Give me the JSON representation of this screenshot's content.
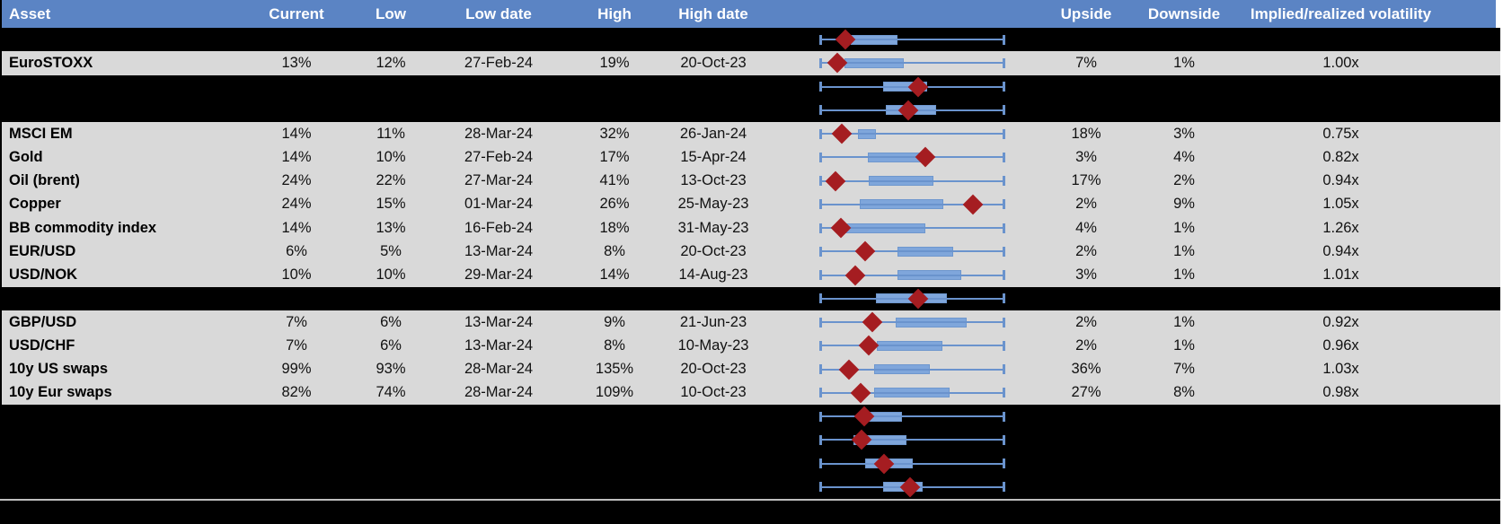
{
  "header": {
    "columns": [
      "Asset",
      "Current",
      "Low",
      "Low date",
      "High",
      "High date",
      "",
      "Upside",
      "Downside",
      "Implied/realized volatility"
    ]
  },
  "colors": {
    "header_blue": "#5B84C4",
    "row_gray": "#D9D9D9",
    "spacer_black": "#000000",
    "whisker_blue": "#6A93CD",
    "box_fill_blue": "#7FA6DB",
    "box_border_blue": "#6E97CE",
    "marker_red": "#A51D21",
    "divider_gray": "#BFBFBF"
  },
  "rows": [
    {
      "type": "spacer",
      "plot": {
        "box_start": 0.166,
        "box_end": 0.41,
        "marker": 0.137
      }
    },
    {
      "type": "data",
      "asset": "EuroSTOXX",
      "current": "13%",
      "low": "12%",
      "low_date": "27-Feb-24",
      "high": "19%",
      "high_date": "20-Oct-23",
      "upside": "7%",
      "downside": "1%",
      "implied_realized": "1.00x",
      "plot": {
        "box_start": 0.132,
        "box_end": 0.444,
        "marker": 0.093
      }
    },
    {
      "type": "spacer",
      "plot": {
        "box_start": 0.341,
        "box_end": 0.571,
        "marker": 0.532
      }
    },
    {
      "type": "spacer",
      "plot": {
        "box_start": 0.356,
        "box_end": 0.62,
        "marker": 0.478
      }
    },
    {
      "type": "data",
      "asset": "MSCI EM",
      "current": "14%",
      "low": "11%",
      "low_date": "28-Mar-24",
      "high": "32%",
      "high_date": "26-Jan-24",
      "upside": "18%",
      "downside": "3%",
      "implied_realized": "0.75x",
      "plot": {
        "box_start": 0.205,
        "box_end": 0.293,
        "marker": 0.117
      }
    },
    {
      "type": "data",
      "asset": "Gold",
      "current": "14%",
      "low": "10%",
      "low_date": "27-Feb-24",
      "high": "17%",
      "high_date": "15-Apr-24",
      "upside": "3%",
      "downside": "4%",
      "implied_realized": "0.82x",
      "plot": {
        "box_start": 0.259,
        "box_end": 0.537,
        "marker": 0.571
      }
    },
    {
      "type": "data",
      "asset": "Oil (brent)",
      "current": "24%",
      "low": "22%",
      "low_date": "27-Mar-24",
      "high": "41%",
      "high_date": "13-Oct-23",
      "upside": "17%",
      "downside": "2%",
      "implied_realized": "0.94x",
      "plot": {
        "box_start": 0.263,
        "box_end": 0.605,
        "marker": 0.083
      }
    },
    {
      "type": "data",
      "asset": "Copper",
      "current": "24%",
      "low": "15%",
      "low_date": "01-Mar-24",
      "high": "26%",
      "high_date": "25-May-23",
      "upside": "2%",
      "downside": "9%",
      "implied_realized": "1.05x",
      "plot": {
        "box_start": 0.215,
        "box_end": 0.659,
        "marker": 0.829
      }
    },
    {
      "type": "data",
      "asset": "BB commodity index",
      "current": "14%",
      "low": "13%",
      "low_date": "16-Feb-24",
      "high": "18%",
      "high_date": "31-May-23",
      "upside": "4%",
      "downside": "1%",
      "implied_realized": "1.26x",
      "plot": {
        "box_start": 0.132,
        "box_end": 0.562,
        "marker": 0.112
      }
    },
    {
      "type": "data",
      "asset": "EUR/USD",
      "current": "6%",
      "low": "5%",
      "low_date": "13-Mar-24",
      "high": "8%",
      "high_date": "20-Oct-23",
      "upside": "2%",
      "downside": "1%",
      "implied_realized": "0.94x",
      "plot": {
        "box_start": 0.421,
        "box_end": 0.714,
        "marker": 0.242
      }
    },
    {
      "type": "data",
      "asset": "USD/NOK",
      "current": "10%",
      "low": "10%",
      "low_date": "29-Mar-24",
      "high": "14%",
      "high_date": "14-Aug-23",
      "upside": "3%",
      "downside": "1%",
      "implied_realized": "1.01x",
      "plot": {
        "box_start": 0.421,
        "box_end": 0.758,
        "marker": 0.189
      }
    },
    {
      "type": "spacer",
      "plot": {
        "box_start": 0.302,
        "box_end": 0.678,
        "marker": 0.532
      }
    },
    {
      "type": "data",
      "asset": "GBP/USD",
      "current": "7%",
      "low": "6%",
      "low_date": "13-Mar-24",
      "high": "9%",
      "high_date": "21-Jun-23",
      "upside": "2%",
      "downside": "1%",
      "implied_realized": "0.92x",
      "plot": {
        "box_start": 0.41,
        "box_end": 0.785,
        "marker": 0.283
      }
    },
    {
      "type": "data",
      "asset": "USD/CHF",
      "current": "7%",
      "low": "6%",
      "low_date": "13-Mar-24",
      "high": "8%",
      "high_date": "10-May-23",
      "upside": "2%",
      "downside": "1%",
      "implied_realized": "0.96x",
      "plot": {
        "box_start": 0.307,
        "box_end": 0.654,
        "marker": 0.263
      }
    },
    {
      "type": "data",
      "asset": "10y US swaps",
      "current": "99%",
      "low": "93%",
      "low_date": "28-Mar-24",
      "high": "135%",
      "high_date": "20-Oct-23",
      "upside": "36%",
      "downside": "7%",
      "implied_realized": "1.03x",
      "plot": {
        "box_start": 0.293,
        "box_end": 0.585,
        "marker": 0.156
      }
    },
    {
      "type": "data",
      "asset": "10y Eur swaps",
      "current": "82%",
      "low": "74%",
      "low_date": "28-Mar-24",
      "high": "109%",
      "high_date": "10-Oct-23",
      "upside": "27%",
      "downside": "8%",
      "implied_realized": "0.98x",
      "plot": {
        "box_start": 0.291,
        "box_end": 0.693,
        "marker": 0.221
      }
    },
    {
      "type": "spacer",
      "plot": {
        "box_start": 0.262,
        "box_end": 0.433,
        "marker": 0.238
      }
    },
    {
      "type": "spacer",
      "plot": {
        "box_start": 0.18,
        "box_end": 0.46,
        "marker": 0.226
      }
    },
    {
      "type": "spacer",
      "plot": {
        "box_start": 0.242,
        "box_end": 0.494,
        "marker": 0.346
      }
    },
    {
      "type": "spacer",
      "plot": {
        "box_start": 0.343,
        "box_end": 0.546,
        "marker": 0.487
      }
    }
  ]
}
